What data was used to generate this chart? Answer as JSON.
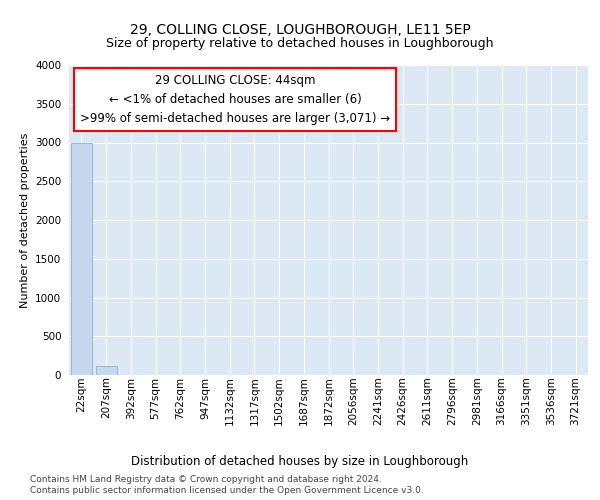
{
  "title": "29, COLLING CLOSE, LOUGHBOROUGH, LE11 5EP",
  "subtitle": "Size of property relative to detached houses in Loughborough",
  "xlabel": "Distribution of detached houses by size in Loughborough",
  "ylabel": "Number of detached properties",
  "footer_line1": "Contains HM Land Registry data © Crown copyright and database right 2024.",
  "footer_line2": "Contains public sector information licensed under the Open Government Licence v3.0.",
  "annotation_line1": "29 COLLING CLOSE: 44sqm",
  "annotation_line2": "← <1% of detached houses are smaller (6)",
  "annotation_line3": ">99% of semi-detached houses are larger (3,071) →",
  "bar_color": "#c5d8ee",
  "bar_edge_color": "#8ab0d4",
  "plot_bg_color": "#dce9f5",
  "categories": [
    "22sqm",
    "207sqm",
    "392sqm",
    "577sqm",
    "762sqm",
    "947sqm",
    "1132sqm",
    "1317sqm",
    "1502sqm",
    "1687sqm",
    "1872sqm",
    "2056sqm",
    "2241sqm",
    "2426sqm",
    "2611sqm",
    "2796sqm",
    "2981sqm",
    "3166sqm",
    "3351sqm",
    "3536sqm",
    "3721sqm"
  ],
  "values": [
    3000,
    120,
    0,
    0,
    0,
    0,
    0,
    0,
    0,
    0,
    0,
    0,
    0,
    0,
    0,
    0,
    0,
    0,
    0,
    0,
    0
  ],
  "ylim": [
    0,
    4000
  ],
  "yticks": [
    0,
    500,
    1000,
    1500,
    2000,
    2500,
    3000,
    3500,
    4000
  ],
  "title_fontsize": 10,
  "subtitle_fontsize": 9,
  "axis_label_fontsize": 8.5,
  "ylabel_fontsize": 8,
  "tick_fontsize": 7.5,
  "annotation_fontsize": 8.5,
  "footer_fontsize": 6.5
}
